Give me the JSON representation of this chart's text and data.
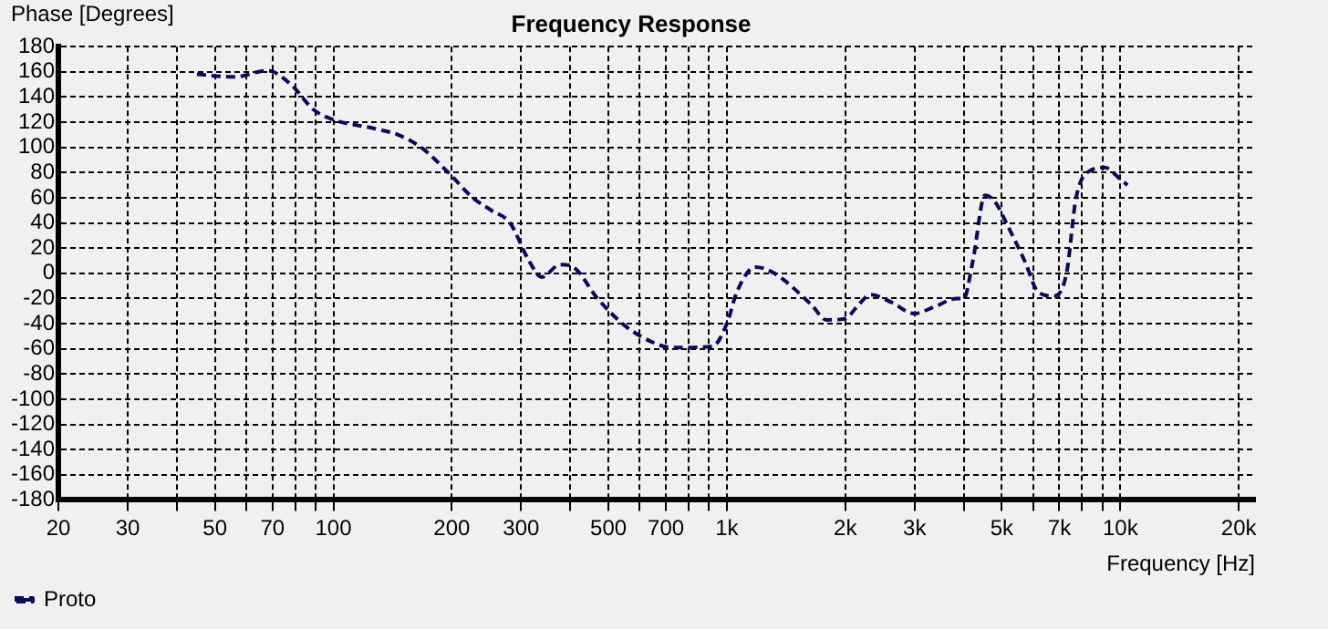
{
  "chart_data": {
    "type": "line",
    "title": "Frequency Response",
    "xlabel": "Frequency [Hz]",
    "ylabel": "Phase [Degrees]",
    "log": "x",
    "grid": true,
    "legend": "bottom left",
    "marker": "none",
    "line_style": "dashed",
    "xlim": [
      20,
      22000
    ],
    "xticks": [
      20,
      30,
      {
        "value": 40,
        "label": null
      },
      50,
      {
        "value": 60,
        "label": null
      },
      70,
      {
        "value": 80,
        "label": null
      },
      {
        "value": 90,
        "label": null
      },
      100,
      200,
      300,
      {
        "value": 400,
        "label": null
      },
      500,
      {
        "value": 600,
        "label": null
      },
      700,
      {
        "value": 800,
        "label": null
      },
      {
        "value": 900,
        "label": null
      },
      {
        "value": 1000,
        "label": "1k"
      },
      {
        "value": 2000,
        "label": "2k"
      },
      {
        "value": 3000,
        "label": "3k"
      },
      {
        "value": 4000,
        "label": null
      },
      {
        "value": 5000,
        "label": "5k"
      },
      {
        "value": 6000,
        "label": null
      },
      {
        "value": 7000,
        "label": "7k"
      },
      {
        "value": 8000,
        "label": null
      },
      {
        "value": 9000,
        "label": null
      },
      {
        "value": 10000,
        "label": "10k"
      },
      {
        "value": 20000,
        "label": "20k"
      }
    ],
    "ylim": [
      -180,
      180
    ],
    "yticks": [
      -180,
      -160,
      -140,
      -120,
      -100,
      -80,
      -60,
      -40,
      -20,
      0,
      20,
      40,
      60,
      80,
      100,
      120,
      140,
      160,
      180
    ],
    "series": [
      {
        "name": "Proto",
        "color": "#0a0a5c",
        "x": [
          45,
          56,
          68,
          78,
          89,
          100,
          127,
          146,
          167,
          196,
          226,
          252,
          281,
          314,
          338,
          377,
          407,
          469,
          553,
          650,
          725,
          920,
          1000,
          1060,
          1180,
          1320,
          1640,
          1790,
          2000,
          2160,
          2320,
          2620,
          2990,
          3350,
          3840,
          4000,
          4220,
          4530,
          4800,
          5130,
          5710,
          6190,
          6780,
          7300,
          7720,
          8440,
          9130,
          9980,
          10430
        ],
        "values": [
          158,
          156,
          161,
          150,
          130,
          122,
          115,
          110,
          100,
          80,
          60,
          50,
          40,
          10,
          -3,
          7,
          5,
          -20,
          -42,
          -55,
          -59,
          -58,
          -40,
          -15,
          5,
          0,
          -25,
          -37,
          -36,
          -25,
          -17,
          -23,
          -32,
          -27,
          -20,
          -20,
          10,
          62,
          57,
          40,
          10,
          -15,
          -18,
          0,
          60,
          82,
          84,
          75,
          70
        ]
      }
    ]
  }
}
